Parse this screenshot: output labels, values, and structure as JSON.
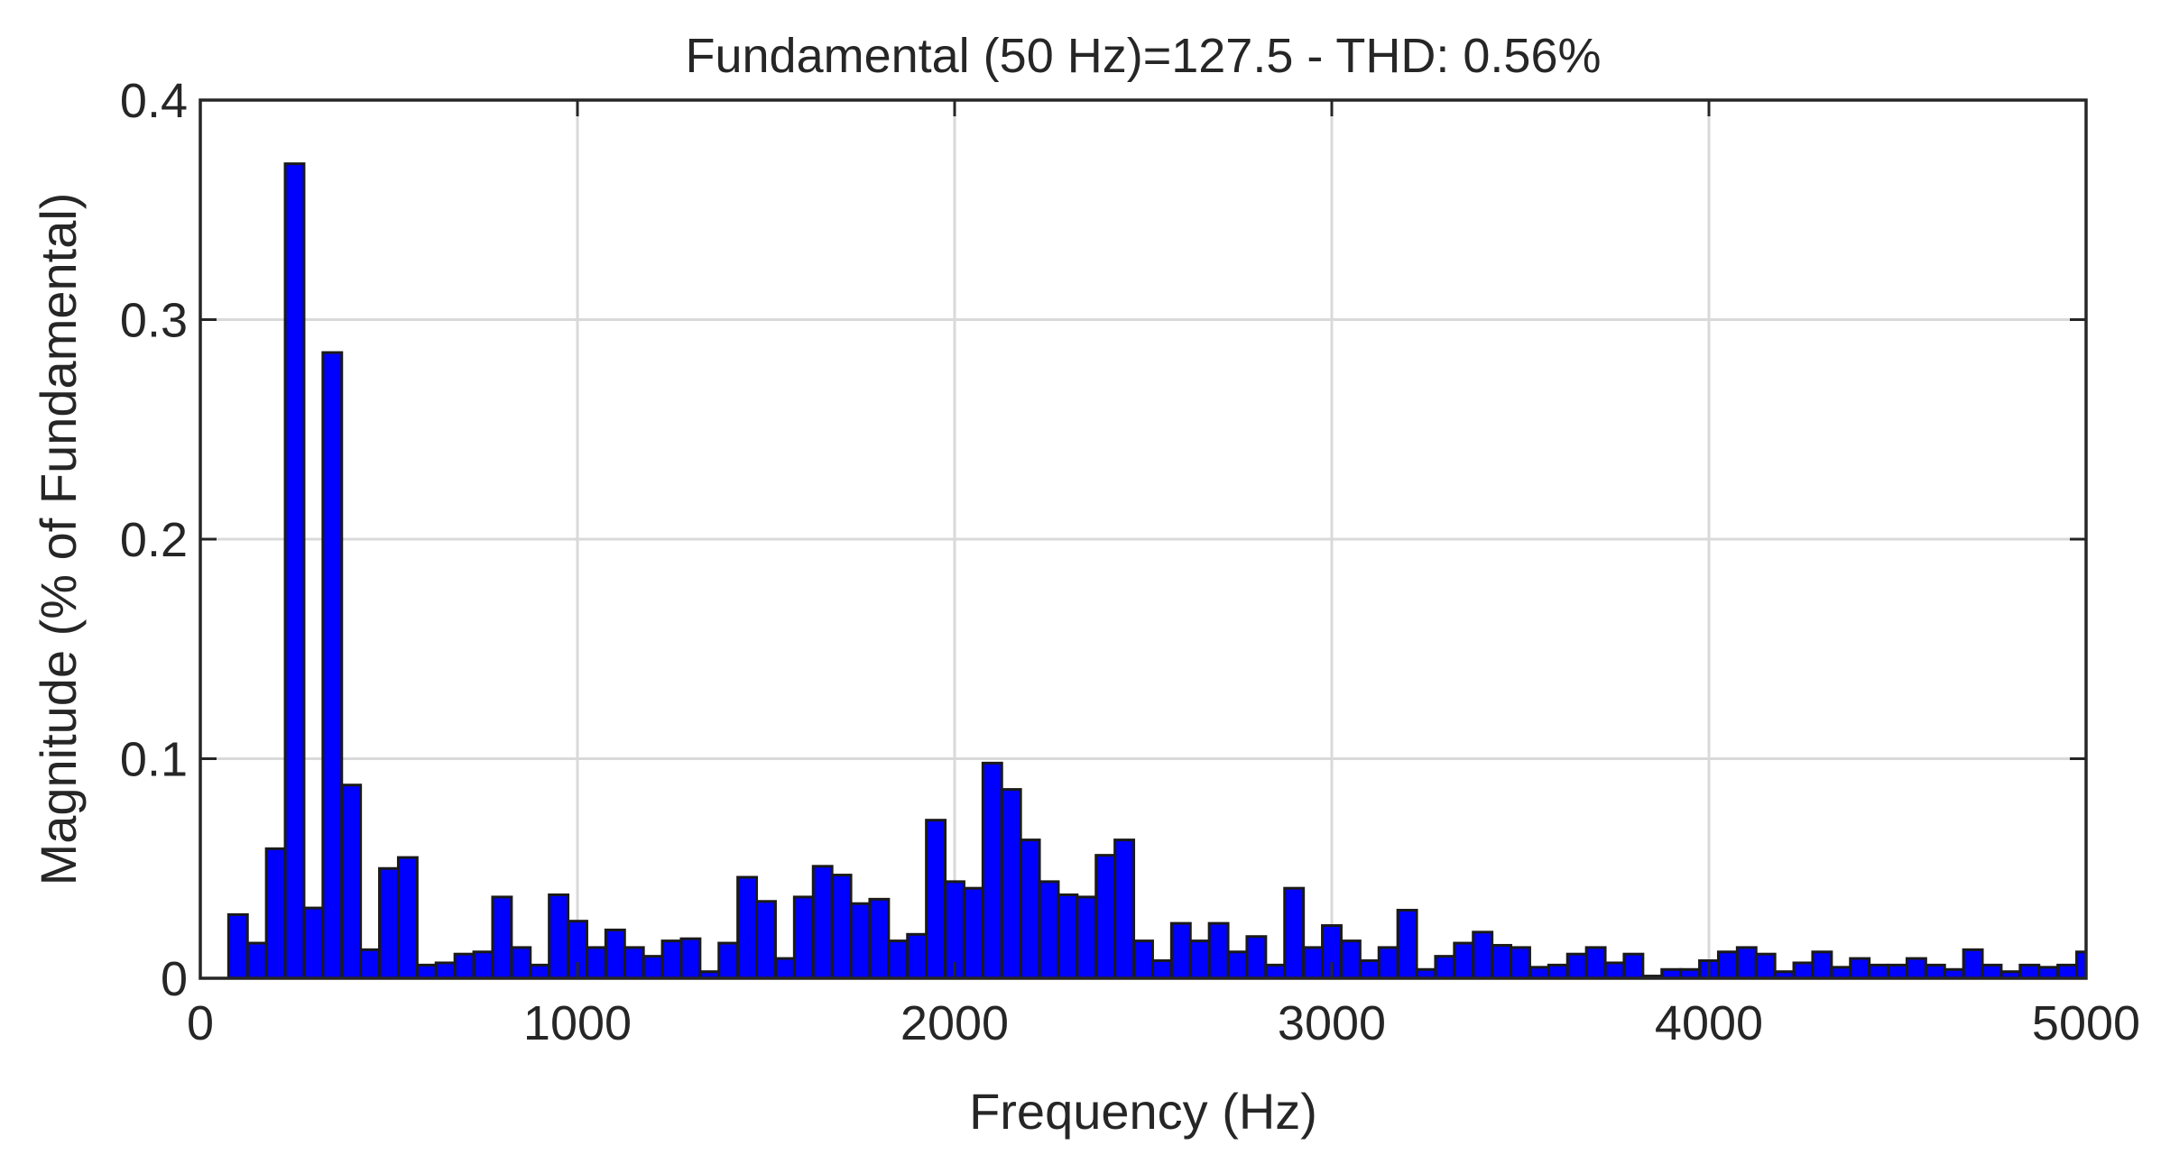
{
  "chart_data": {
    "type": "bar",
    "title": "Fundamental (50 Hz)=127.5 - THD: 0.56%",
    "xlabel": "Frequency (Hz)",
    "ylabel": "Magnitude (% of Fundamental)",
    "xlim": [
      0,
      5000
    ],
    "ylim": [
      0,
      0.4
    ],
    "xticks": [
      0,
      1000,
      2000,
      3000,
      4000,
      5000
    ],
    "xtick_labels": [
      "0",
      "1000",
      "2000",
      "3000",
      "4000",
      "5000"
    ],
    "yticks": [
      0,
      0.1,
      0.2,
      0.3,
      0.4
    ],
    "ytick_labels": [
      "0",
      "0.1",
      "0.2",
      "0.3",
      "0.4"
    ],
    "grid": true,
    "bar_color": "#0000ff",
    "edge_color": "#1a1a1a",
    "bar_width": 50,
    "x": [
      100,
      150,
      200,
      250,
      300,
      350,
      400,
      450,
      500,
      550,
      600,
      650,
      700,
      750,
      800,
      850,
      900,
      950,
      1000,
      1050,
      1100,
      1150,
      1200,
      1250,
      1300,
      1350,
      1400,
      1450,
      1500,
      1550,
      1600,
      1650,
      1700,
      1750,
      1800,
      1850,
      1900,
      1950,
      2000,
      2050,
      2100,
      2150,
      2200,
      2250,
      2300,
      2350,
      2400,
      2450,
      2500,
      2550,
      2600,
      2650,
      2700,
      2750,
      2800,
      2850,
      2900,
      2950,
      3000,
      3050,
      3100,
      3150,
      3200,
      3250,
      3300,
      3350,
      3400,
      3450,
      3500,
      3550,
      3600,
      3650,
      3700,
      3750,
      3800,
      3850,
      3900,
      3950,
      4000,
      4050,
      4100,
      4150,
      4200,
      4250,
      4300,
      4350,
      4400,
      4450,
      4500,
      4550,
      4600,
      4650,
      4700,
      4750,
      4800,
      4850,
      4900,
      4950,
      5000
    ],
    "values": [
      0.029,
      0.016,
      0.059,
      0.371,
      0.032,
      0.285,
      0.088,
      0.013,
      0.05,
      0.055,
      0.006,
      0.007,
      0.011,
      0.012,
      0.037,
      0.014,
      0.006,
      0.038,
      0.026,
      0.014,
      0.022,
      0.014,
      0.01,
      0.017,
      0.018,
      0.003,
      0.016,
      0.046,
      0.035,
      0.009,
      0.037,
      0.051,
      0.047,
      0.034,
      0.036,
      0.017,
      0.02,
      0.072,
      0.044,
      0.041,
      0.098,
      0.086,
      0.063,
      0.044,
      0.038,
      0.037,
      0.056,
      0.063,
      0.017,
      0.008,
      0.025,
      0.017,
      0.025,
      0.012,
      0.019,
      0.006,
      0.041,
      0.014,
      0.024,
      0.017,
      0.008,
      0.014,
      0.031,
      0.004,
      0.01,
      0.016,
      0.021,
      0.015,
      0.014,
      0.005,
      0.006,
      0.011,
      0.014,
      0.007,
      0.011,
      0.001,
      0.004,
      0.004,
      0.008,
      0.012,
      0.014,
      0.011,
      0.003,
      0.007,
      0.012,
      0.005,
      0.009,
      0.006,
      0.006,
      0.009,
      0.006,
      0.004,
      0.013,
      0.006,
      0.003,
      0.006,
      0.005,
      0.006,
      0.012
    ]
  }
}
